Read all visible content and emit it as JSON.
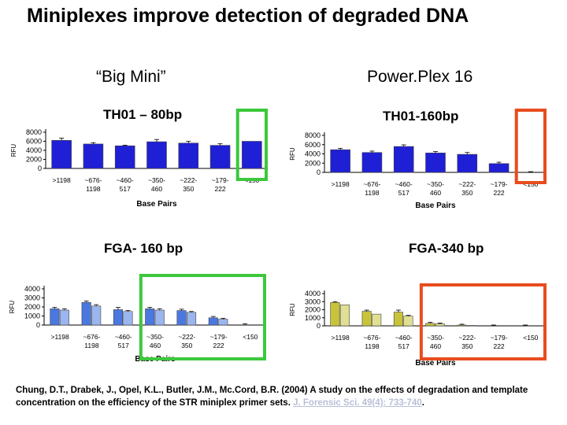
{
  "slide": {
    "title": "Miniplexes improve detection of degraded DNA",
    "left_heading": "“Big Mini”",
    "right_heading": "Power.Plex 16",
    "citation_main": "Chung, D.T., Drabek, J., Opel, K.L., Butler, J.M., Mc.Cord, B.R. (2004) A study on the effects of degradation and template concentration on the efficiency of the STR miniplex primer sets.",
    "citation_journal": "J. Forensic Sci. 49(4): 733-740",
    "citation_end": ".",
    "highlight_colors": {
      "green": "#3cc83c",
      "orange": "#e84c1e"
    }
  },
  "chart_data": [
    {
      "type": "bar",
      "title": "TH01 – 80bp",
      "ylabel": "RFU",
      "xlabel": "Base Pairs",
      "ylim": [
        0,
        8000
      ],
      "yticks": [
        0,
        2000,
        4000,
        6000,
        8000
      ],
      "categories": [
        ">1198",
        "~676-1198",
        "~460-517",
        "~350-460",
        "~222-350",
        "~179-222",
        "<150"
      ],
      "series": [
        {
          "values": [
            6200,
            5400,
            5000,
            5900,
            5600,
            5100,
            6000
          ],
          "errors": [
            500,
            300,
            150,
            500,
            400,
            350,
            0
          ]
        }
      ],
      "color": "#1f1fd6",
      "highlight": {
        "color": "green",
        "categories": [
          "<150"
        ]
      }
    },
    {
      "type": "bar",
      "title": "TH01-160bp",
      "ylabel": "RFU",
      "xlabel": "Base Pairs",
      "ylim": [
        0,
        8000
      ],
      "yticks": [
        0,
        2000,
        4000,
        6000,
        8000
      ],
      "categories": [
        ">1198",
        "~676-1198",
        "~460-517",
        "~350-460",
        "~222-350",
        "~179-222",
        "<150"
      ],
      "series": [
        {
          "values": [
            4900,
            4300,
            5600,
            4200,
            3900,
            1900,
            0
          ],
          "errors": [
            300,
            300,
            350,
            300,
            400,
            300,
            150
          ]
        }
      ],
      "color": "#1f1fd6",
      "highlight": {
        "color": "orange",
        "categories": [
          "<150"
        ]
      }
    },
    {
      "type": "bar",
      "title": "FGA- 160 bp",
      "ylabel": "RFU",
      "xlabel": "Base Pairs",
      "ylim": [
        0,
        4000
      ],
      "yticks": [
        0,
        1000,
        2000,
        3000,
        4000
      ],
      "categories": [
        ">1198",
        "~676-1198",
        "~460-517",
        "~350-460",
        "~222-350",
        "~179-222",
        "<150"
      ],
      "series": [
        {
          "values": [
            1800,
            2500,
            1700,
            1800,
            1600,
            800,
            0
          ],
          "errors": [
            150,
            150,
            250,
            150,
            150,
            150,
            150
          ]
        },
        {
          "values": [
            1650,
            2100,
            1500,
            1650,
            1400,
            650,
            0
          ],
          "errors": [
            150,
            150,
            100,
            150,
            100,
            100,
            0
          ]
        }
      ],
      "color": "#4a78e0",
      "highlight": {
        "color": "green",
        "categories": [
          "~350-460",
          "~222-350",
          "~179-222",
          "<150"
        ]
      }
    },
    {
      "type": "bar",
      "title": "FGA-340 bp",
      "ylabel": "RFU",
      "xlabel": "Base Pairs",
      "ylim": [
        0,
        4000
      ],
      "yticks": [
        0,
        1000,
        2000,
        3000,
        4000
      ],
      "categories": [
        ">1198",
        "~676-1198",
        "~460-517",
        "~350-460",
        "~222-350",
        "~179-222",
        "<150"
      ],
      "series": [
        {
          "values": [
            2900,
            1800,
            1700,
            300,
            100,
            0,
            0
          ],
          "errors": [
            100,
            150,
            250,
            150,
            100,
            100,
            100
          ]
        },
        {
          "values": [
            2600,
            1450,
            1200,
            250,
            50,
            0,
            0
          ],
          "errors": [
            0,
            0,
            100,
            100,
            0,
            0,
            0
          ]
        }
      ],
      "color": "#c8c43a",
      "highlight": {
        "color": "orange",
        "categories": [
          "~350-460",
          "~222-350",
          "~179-222",
          "<150"
        ]
      }
    }
  ]
}
